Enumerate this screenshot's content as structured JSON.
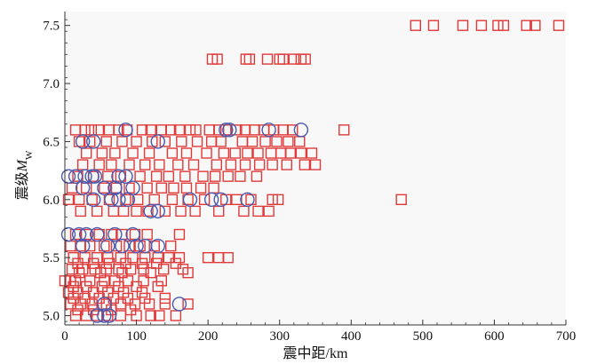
{
  "chart_data": {
    "type": "scatter",
    "title": "",
    "xlabel": "震中距/km",
    "ylabel_main": "震级",
    "ylabel_symbol": "M",
    "ylabel_sub": "W",
    "xlim": [
      0,
      700
    ],
    "ylim": [
      4.92,
      7.62
    ],
    "xticks": [
      "0",
      "100",
      "200",
      "300",
      "400",
      "500",
      "600",
      "700"
    ],
    "yticks": [
      "5.0",
      "5.5",
      "6.0",
      "6.5",
      "7.0",
      "7.5"
    ],
    "grid": false,
    "legend": null,
    "colors": {
      "plot_bg": "#f8f8f8",
      "red_marker": "#e03a3a",
      "blue_marker": "#4a5ab0",
      "axis": "#333333"
    },
    "series": [
      {
        "marker": "square",
        "color": "#e03a3a",
        "points": [
          [
            490,
            7.5
          ],
          [
            515,
            7.5
          ],
          [
            556,
            7.5
          ],
          [
            582,
            7.5
          ],
          [
            605,
            7.5
          ],
          [
            613,
            7.5
          ],
          [
            645,
            7.5
          ],
          [
            657,
            7.5
          ],
          [
            690,
            7.5
          ],
          [
            206,
            7.21
          ],
          [
            213,
            7.21
          ],
          [
            253,
            7.21
          ],
          [
            258,
            7.21
          ],
          [
            283,
            7.21
          ],
          [
            300,
            7.21
          ],
          [
            305,
            7.21
          ],
          [
            320,
            7.21
          ],
          [
            330,
            7.21
          ],
          [
            336,
            7.21
          ],
          [
            15,
            6.6
          ],
          [
            28,
            6.6
          ],
          [
            37,
            6.6
          ],
          [
            47,
            6.6
          ],
          [
            62,
            6.6
          ],
          [
            75,
            6.6
          ],
          [
            87,
            6.6
          ],
          [
            108,
            6.6
          ],
          [
            120,
            6.6
          ],
          [
            135,
            6.6
          ],
          [
            148,
            6.6
          ],
          [
            160,
            6.6
          ],
          [
            175,
            6.6
          ],
          [
            183,
            6.6
          ],
          [
            202,
            6.6
          ],
          [
            215,
            6.6
          ],
          [
            225,
            6.6
          ],
          [
            240,
            6.6
          ],
          [
            252,
            6.6
          ],
          [
            265,
            6.6
          ],
          [
            278,
            6.6
          ],
          [
            292,
            6.6
          ],
          [
            305,
            6.6
          ],
          [
            318,
            6.6
          ],
          [
            390,
            6.6
          ],
          [
            20,
            6.5
          ],
          [
            35,
            6.5
          ],
          [
            58,
            6.5
          ],
          [
            80,
            6.5
          ],
          [
            100,
            6.5
          ],
          [
            122,
            6.5
          ],
          [
            140,
            6.5
          ],
          [
            163,
            6.5
          ],
          [
            185,
            6.5
          ],
          [
            205,
            6.5
          ],
          [
            218,
            6.5
          ],
          [
            248,
            6.5
          ],
          [
            262,
            6.5
          ],
          [
            280,
            6.5
          ],
          [
            296,
            6.5
          ],
          [
            312,
            6.5
          ],
          [
            328,
            6.5
          ],
          [
            30,
            6.4
          ],
          [
            52,
            6.4
          ],
          [
            70,
            6.4
          ],
          [
            95,
            6.4
          ],
          [
            118,
            6.4
          ],
          [
            150,
            6.4
          ],
          [
            170,
            6.4
          ],
          [
            198,
            6.4
          ],
          [
            222,
            6.4
          ],
          [
            238,
            6.4
          ],
          [
            255,
            6.4
          ],
          [
            270,
            6.4
          ],
          [
            288,
            6.4
          ],
          [
            302,
            6.4
          ],
          [
            315,
            6.4
          ],
          [
            330,
            6.4
          ],
          [
            345,
            6.4
          ],
          [
            25,
            6.3
          ],
          [
            48,
            6.3
          ],
          [
            65,
            6.3
          ],
          [
            90,
            6.3
          ],
          [
            112,
            6.3
          ],
          [
            132,
            6.3
          ],
          [
            158,
            6.3
          ],
          [
            180,
            6.3
          ],
          [
            212,
            6.3
          ],
          [
            232,
            6.3
          ],
          [
            252,
            6.3
          ],
          [
            272,
            6.3
          ],
          [
            290,
            6.3
          ],
          [
            310,
            6.3
          ],
          [
            335,
            6.3
          ],
          [
            350,
            6.3
          ],
          [
            18,
            6.2
          ],
          [
            40,
            6.2
          ],
          [
            60,
            6.2
          ],
          [
            78,
            6.2
          ],
          [
            105,
            6.2
          ],
          [
            128,
            6.2
          ],
          [
            145,
            6.2
          ],
          [
            168,
            6.2
          ],
          [
            193,
            6.2
          ],
          [
            210,
            6.2
          ],
          [
            228,
            6.2
          ],
          [
            245,
            6.2
          ],
          [
            268,
            6.2
          ],
          [
            10,
            6.1
          ],
          [
            30,
            6.1
          ],
          [
            55,
            6.1
          ],
          [
            72,
            6.1
          ],
          [
            90,
            6.1
          ],
          [
            115,
            6.1
          ],
          [
            135,
            6.1
          ],
          [
            152,
            6.1
          ],
          [
            170,
            6.1
          ],
          [
            190,
            6.1
          ],
          [
            208,
            6.1
          ],
          [
            5,
            6.0
          ],
          [
            20,
            6.0
          ],
          [
            38,
            6.0
          ],
          [
            62,
            6.0
          ],
          [
            85,
            6.0
          ],
          [
            102,
            6.0
          ],
          [
            125,
            6.0
          ],
          [
            150,
            6.0
          ],
          [
            172,
            6.0
          ],
          [
            195,
            6.0
          ],
          [
            225,
            6.0
          ],
          [
            240,
            6.0
          ],
          [
            260,
            6.0
          ],
          [
            290,
            6.0
          ],
          [
            298,
            6.0
          ],
          [
            470,
            6.0
          ],
          [
            22,
            5.9
          ],
          [
            45,
            5.9
          ],
          [
            68,
            5.9
          ],
          [
            82,
            5.9
          ],
          [
            100,
            5.9
          ],
          [
            116,
            5.9
          ],
          [
            140,
            5.9
          ],
          [
            162,
            5.9
          ],
          [
            182,
            5.9
          ],
          [
            215,
            5.9
          ],
          [
            250,
            5.9
          ],
          [
            270,
            5.9
          ],
          [
            285,
            5.9
          ],
          [
            15,
            5.7
          ],
          [
            30,
            5.7
          ],
          [
            48,
            5.7
          ],
          [
            65,
            5.7
          ],
          [
            80,
            5.7
          ],
          [
            98,
            5.7
          ],
          [
            115,
            5.7
          ],
          [
            160,
            5.7
          ],
          [
            8,
            5.6
          ],
          [
            22,
            5.6
          ],
          [
            35,
            5.6
          ],
          [
            55,
            5.6
          ],
          [
            72,
            5.6
          ],
          [
            90,
            5.6
          ],
          [
            105,
            5.6
          ],
          [
            125,
            5.6
          ],
          [
            148,
            5.6
          ],
          [
            12,
            5.5
          ],
          [
            28,
            5.5
          ],
          [
            45,
            5.5
          ],
          [
            60,
            5.5
          ],
          [
            78,
            5.5
          ],
          [
            95,
            5.5
          ],
          [
            112,
            5.5
          ],
          [
            130,
            5.5
          ],
          [
            145,
            5.5
          ],
          [
            160,
            5.5
          ],
          [
            200,
            5.5
          ],
          [
            215,
            5.5
          ],
          [
            228,
            5.5
          ],
          [
            18,
            5.45
          ],
          [
            40,
            5.45
          ],
          [
            62,
            5.45
          ],
          [
            85,
            5.45
          ],
          [
            108,
            5.45
          ],
          [
            128,
            5.45
          ],
          [
            155,
            5.45
          ],
          [
            10,
            5.4
          ],
          [
            25,
            5.4
          ],
          [
            42,
            5.4
          ],
          [
            58,
            5.4
          ],
          [
            75,
            5.4
          ],
          [
            92,
            5.4
          ],
          [
            110,
            5.4
          ],
          [
            138,
            5.4
          ],
          [
            165,
            5.4
          ],
          [
            20,
            5.37
          ],
          [
            50,
            5.37
          ],
          [
            80,
            5.37
          ],
          [
            120,
            5.37
          ],
          [
            172,
            5.37
          ],
          [
            0,
            5.3
          ],
          [
            8,
            5.3
          ],
          [
            15,
            5.3
          ],
          [
            35,
            5.3
          ],
          [
            55,
            5.3
          ],
          [
            70,
            5.3
          ],
          [
            88,
            5.3
          ],
          [
            110,
            5.3
          ],
          [
            135,
            5.3
          ],
          [
            12,
            5.25
          ],
          [
            30,
            5.25
          ],
          [
            52,
            5.25
          ],
          [
            75,
            5.25
          ],
          [
            100,
            5.25
          ],
          [
            130,
            5.25
          ],
          [
            5,
            5.2
          ],
          [
            18,
            5.2
          ],
          [
            40,
            5.2
          ],
          [
            60,
            5.2
          ],
          [
            82,
            5.2
          ],
          [
            108,
            5.2
          ],
          [
            12,
            5.15
          ],
          [
            28,
            5.15
          ],
          [
            48,
            5.15
          ],
          [
            68,
            5.15
          ],
          [
            88,
            5.15
          ],
          [
            112,
            5.15
          ],
          [
            140,
            5.15
          ],
          [
            8,
            5.1
          ],
          [
            22,
            5.1
          ],
          [
            38,
            5.1
          ],
          [
            58,
            5.1
          ],
          [
            78,
            5.1
          ],
          [
            98,
            5.1
          ],
          [
            118,
            5.1
          ],
          [
            140,
            5.1
          ],
          [
            172,
            5.1
          ],
          [
            18,
            5.05
          ],
          [
            40,
            5.05
          ],
          [
            65,
            5.05
          ],
          [
            92,
            5.05
          ],
          [
            15,
            5.0
          ],
          [
            30,
            5.0
          ],
          [
            45,
            5.0
          ],
          [
            60,
            5.0
          ],
          [
            78,
            5.0
          ],
          [
            100,
            5.0
          ],
          [
            120,
            5.0
          ],
          [
            132,
            5.0
          ],
          [
            155,
            5.0
          ]
        ]
      },
      {
        "marker": "circle",
        "color": "#4a5ab0",
        "points": [
          [
            85,
            6.6
          ],
          [
            225,
            6.6
          ],
          [
            230,
            6.6
          ],
          [
            285,
            6.6
          ],
          [
            330,
            6.6
          ],
          [
            25,
            6.5
          ],
          [
            40,
            6.5
          ],
          [
            130,
            6.5
          ],
          [
            5,
            6.2
          ],
          [
            15,
            6.2
          ],
          [
            28,
            6.2
          ],
          [
            38,
            6.2
          ],
          [
            42,
            6.2
          ],
          [
            75,
            6.2
          ],
          [
            85,
            6.2
          ],
          [
            25,
            6.1
          ],
          [
            55,
            6.1
          ],
          [
            70,
            6.1
          ],
          [
            95,
            6.1
          ],
          [
            40,
            6.0
          ],
          [
            65,
            6.0
          ],
          [
            75,
            6.0
          ],
          [
            88,
            6.0
          ],
          [
            175,
            6.0
          ],
          [
            205,
            6.0
          ],
          [
            218,
            6.0
          ],
          [
            255,
            6.0
          ],
          [
            120,
            5.9
          ],
          [
            130,
            5.9
          ],
          [
            5,
            5.7
          ],
          [
            20,
            5.7
          ],
          [
            30,
            5.7
          ],
          [
            45,
            5.7
          ],
          [
            70,
            5.7
          ],
          [
            95,
            5.7
          ],
          [
            25,
            5.6
          ],
          [
            60,
            5.6
          ],
          [
            80,
            5.6
          ],
          [
            100,
            5.6
          ],
          [
            112,
            5.6
          ],
          [
            130,
            5.6
          ],
          [
            55,
            5.1
          ],
          [
            160,
            5.1
          ],
          [
            45,
            5.0
          ],
          [
            55,
            5.0
          ],
          [
            62,
            5.0
          ]
        ]
      }
    ]
  }
}
